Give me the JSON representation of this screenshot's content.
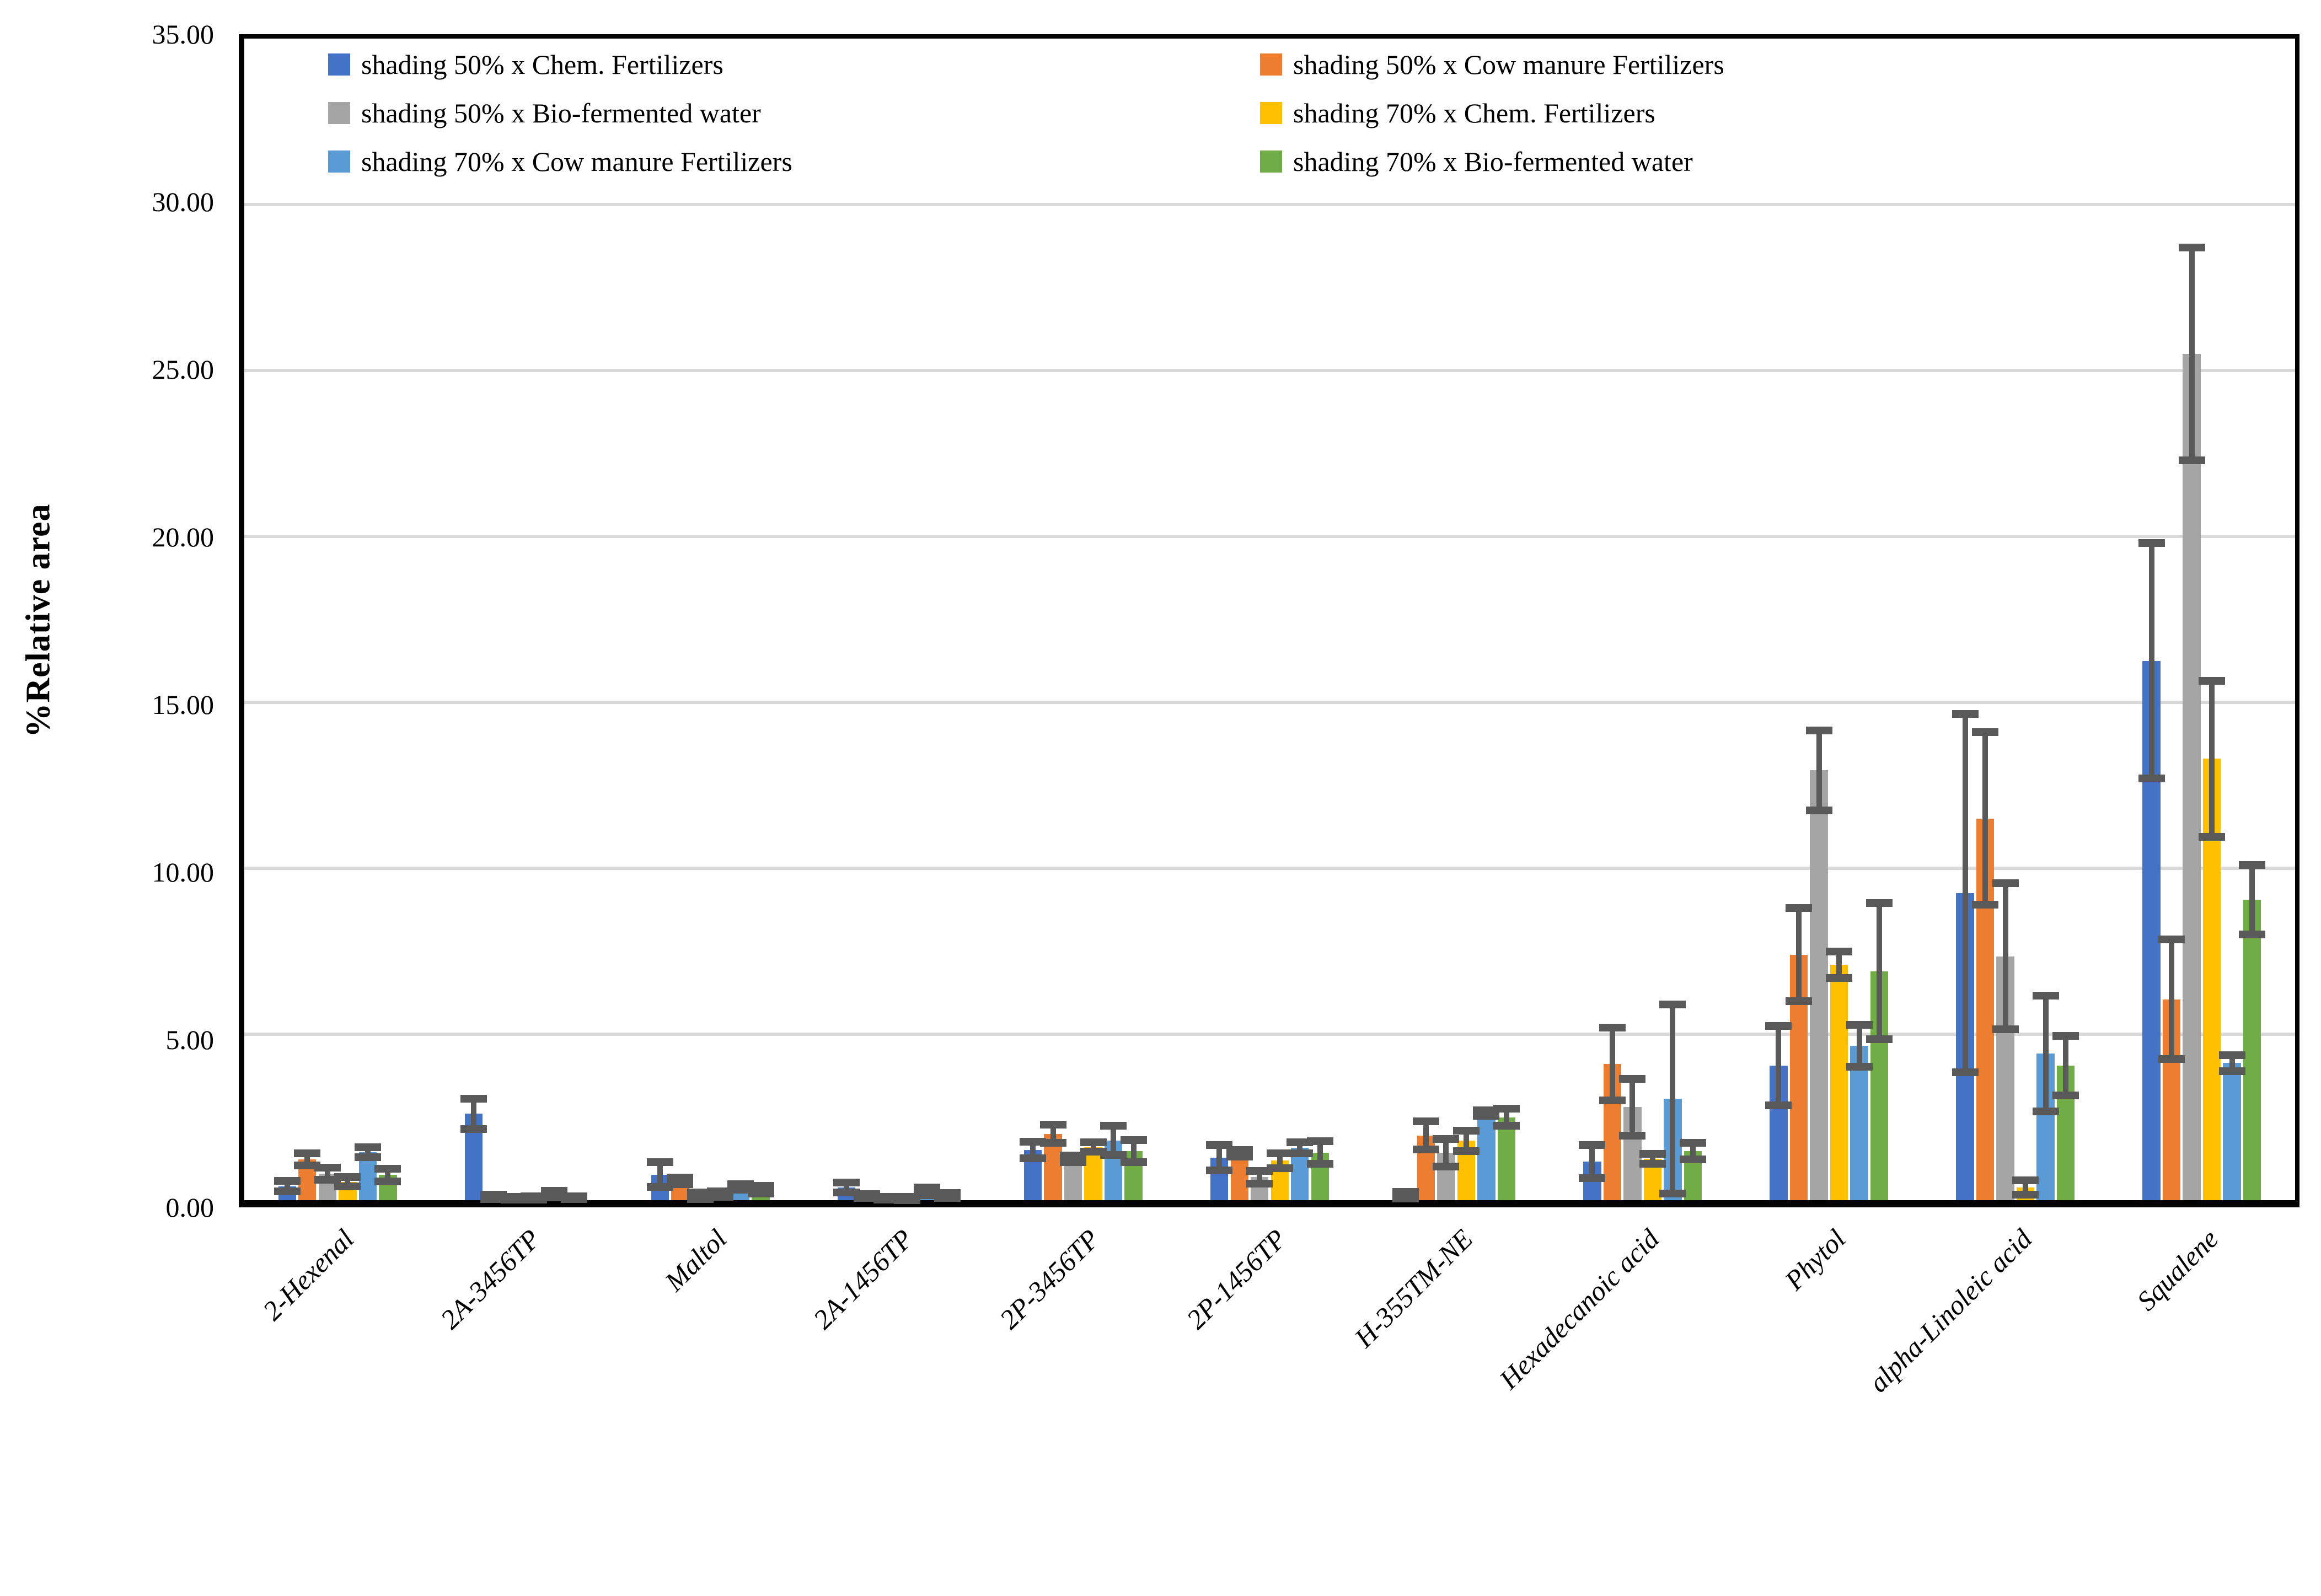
{
  "chart_data": {
    "type": "bar",
    "title": "",
    "xlabel": "",
    "ylabel": "%Relative area",
    "ylim": [
      0,
      35
    ],
    "ytick_step": 5,
    "yticks": [
      "0.00",
      "5.00",
      "10.00",
      "15.00",
      "20.00",
      "25.00",
      "30.00",
      "35.00"
    ],
    "grid": true,
    "legend_position": "top",
    "error_bars": true,
    "categories": [
      "2-Hexenal",
      "2A-3456TP",
      "Maltol",
      "2A-1456TP",
      "2P-3456TP",
      "2P-1456TP",
      "H-355TM-NE",
      "Hexadecanoic acid",
      "Phytol",
      "alpha-Linoleic acid",
      "Squalene"
    ],
    "series": [
      {
        "name": "shading 50% x Chem. Fertilizers",
        "color": "#4472C4",
        "values": [
          0.42,
          2.6,
          0.77,
          0.38,
          1.51,
          1.28,
          0.15,
          1.16,
          4.05,
          9.25,
          16.25
        ],
        "errors": [
          0.16,
          0.45,
          0.37,
          0.15,
          0.25,
          0.38,
          0.1,
          0.5,
          1.2,
          5.4,
          3.55
        ]
      },
      {
        "name": "shading 50% x Cow manure Fertilizers",
        "color": "#ED7D31",
        "values": [
          1.23,
          0.1,
          0.58,
          0.12,
          2.0,
          1.42,
          1.95,
          4.1,
          7.4,
          11.5,
          6.05
        ],
        "errors": [
          0.19,
          0.06,
          0.1,
          0.06,
          0.27,
          0.1,
          0.42,
          1.1,
          1.4,
          2.6,
          1.8
        ]
      },
      {
        "name": "shading 50% x Bio-fermented water",
        "color": "#A5A5A5",
        "values": [
          0.8,
          0.06,
          0.13,
          0.06,
          1.25,
          0.69,
          1.43,
          2.8,
          12.95,
          7.35,
          25.5
        ],
        "errors": [
          0.18,
          0.04,
          0.1,
          0.04,
          0.1,
          0.19,
          0.42,
          0.85,
          1.2,
          2.2,
          3.2
        ]
      },
      {
        "name": "shading 70% x Chem. Fertilizers",
        "color": "#FFC000",
        "values": [
          0.55,
          0.07,
          0.18,
          0.05,
          1.6,
          1.19,
          1.79,
          1.25,
          7.1,
          0.38,
          13.3
        ],
        "errors": [
          0.14,
          0.05,
          0.08,
          0.05,
          0.14,
          0.23,
          0.31,
          0.15,
          0.4,
          0.22,
          2.35
        ]
      },
      {
        "name": "shading 70% x Cow manure Fertilizers",
        "color": "#5B9BD5",
        "values": [
          1.45,
          0.18,
          0.4,
          0.27,
          1.8,
          1.58,
          2.62,
          3.05,
          4.65,
          4.42,
          4.13
        ],
        "errors": [
          0.15,
          0.1,
          0.09,
          0.12,
          0.44,
          0.17,
          0.08,
          2.85,
          0.63,
          1.75,
          0.24
        ]
      },
      {
        "name": "shading 70% x Bio-fermented water",
        "color": "#70AD47",
        "values": [
          0.76,
          0.07,
          0.32,
          0.14,
          1.48,
          1.43,
          2.5,
          1.48,
          6.9,
          4.05,
          9.05
        ],
        "errors": [
          0.19,
          0.04,
          0.12,
          0.07,
          0.33,
          0.34,
          0.26,
          0.25,
          2.05,
          0.9,
          1.05
        ]
      }
    ]
  },
  "colors": {
    "error_bar": "#595959",
    "gridline": "#D9D9D9",
    "axis": "#000000",
    "background": "#FFFFFF"
  }
}
